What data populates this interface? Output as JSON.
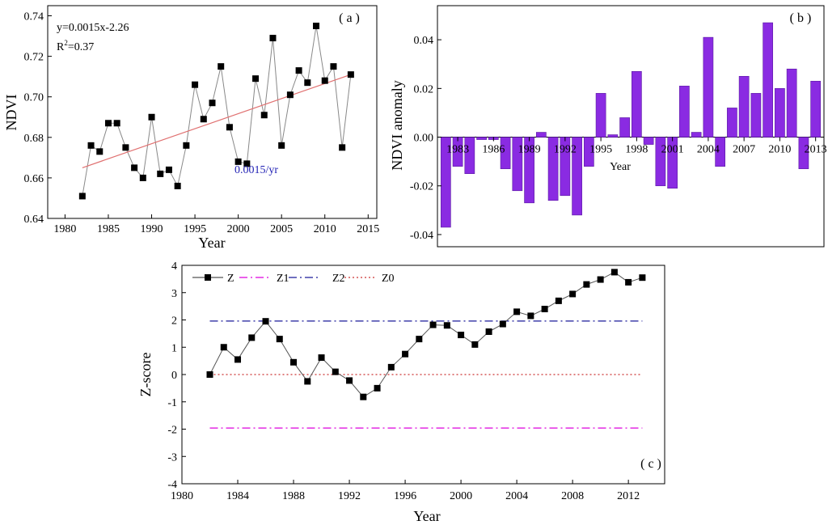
{
  "colors": {
    "points": "#000000",
    "line_a": "#888888",
    "trend": "#e07070",
    "rate_text": "#1f1fb4",
    "bars": "#8a2be2",
    "z_line": "#555555",
    "z1": "#dd00dd",
    "z2": "#1a1a9a",
    "z0": "#cc3333"
  },
  "chart_data": [
    {
      "id": "a",
      "type": "scatter",
      "panel_label": "( a )",
      "xlabel": "Year",
      "ylabel": "NDVI",
      "xlim": [
        1978,
        2016
      ],
      "ylim": [
        0.64,
        0.745
      ],
      "xticks": [
        1980,
        1985,
        1990,
        1995,
        2000,
        2005,
        2010,
        2015
      ],
      "yticks": [
        0.64,
        0.66,
        0.68,
        0.7,
        0.72,
        0.74
      ],
      "ytick_labels": [
        "0.64",
        "0.66",
        "0.68",
        "0.70",
        "0.72",
        "0.74"
      ],
      "equation": "y=0.0015x-2.26",
      "r2_text": "=0.37",
      "r2_prefix": "R",
      "r2_sup": "2",
      "rate_label": "0.0015/yr",
      "x": [
        1982,
        1983,
        1984,
        1985,
        1986,
        1987,
        1988,
        1989,
        1990,
        1991,
        1992,
        1993,
        1994,
        1995,
        1996,
        1997,
        1998,
        1999,
        2000,
        2001,
        2002,
        2003,
        2004,
        2005,
        2006,
        2007,
        2008,
        2009,
        2010,
        2011,
        2012,
        2013
      ],
      "y": [
        0.651,
        0.676,
        0.673,
        0.687,
        0.687,
        0.675,
        0.665,
        0.66,
        0.69,
        0.662,
        0.664,
        0.656,
        0.676,
        0.706,
        0.689,
        0.697,
        0.715,
        0.685,
        0.668,
        0.667,
        0.709,
        0.691,
        0.729,
        0.676,
        0.701,
        0.713,
        0.707,
        0.735,
        0.708,
        0.715,
        0.675,
        0.711
      ],
      "trend": {
        "x": [
          1982,
          2013
        ],
        "y": [
          0.665,
          0.711
        ]
      }
    },
    {
      "id": "b",
      "type": "bar",
      "panel_label": "( b )",
      "xlabel": "Year",
      "ylabel": "NDVI anomaly",
      "xlim": [
        1981.3,
        2013.7
      ],
      "ylim": [
        -0.045,
        0.054
      ],
      "xtick_labels": [
        "1983",
        "1986",
        "1989",
        "1992",
        "1995",
        "1998",
        "2001",
        "2004",
        "2007",
        "2010",
        "2013"
      ],
      "yticks": [
        -0.04,
        -0.02,
        0.0,
        0.02,
        0.04
      ],
      "ytick_labels": [
        "-0.04",
        "-0.02",
        "0.00",
        "0.02",
        "0.04"
      ],
      "categories": [
        1982,
        1983,
        1984,
        1985,
        1986,
        1987,
        1988,
        1989,
        1990,
        1991,
        1992,
        1993,
        1994,
        1995,
        1996,
        1997,
        1998,
        1999,
        2000,
        2001,
        2002,
        2003,
        2004,
        2005,
        2006,
        2007,
        2008,
        2009,
        2010,
        2011,
        2012,
        2013
      ],
      "values": [
        -0.037,
        -0.012,
        -0.015,
        -0.001,
        -0.001,
        -0.013,
        -0.022,
        -0.027,
        0.002,
        -0.026,
        -0.024,
        -0.032,
        -0.012,
        0.018,
        0.001,
        0.008,
        0.027,
        -0.003,
        -0.02,
        -0.021,
        0.021,
        0.002,
        0.041,
        -0.012,
        0.012,
        0.025,
        0.018,
        0.047,
        0.02,
        0.028,
        -0.013,
        0.023
      ]
    },
    {
      "id": "c",
      "type": "line",
      "panel_label": "( c )",
      "xlabel": "Year",
      "ylabel": "Z-score",
      "xlim": [
        1980,
        2014.6
      ],
      "ylim": [
        -4,
        4
      ],
      "xticks": [
        1980,
        1984,
        1988,
        1992,
        1996,
        2000,
        2004,
        2008,
        2012
      ],
      "yticks": [
        -4,
        -3,
        -2,
        -1,
        0,
        1,
        2,
        3,
        4
      ],
      "legend": [
        "Z",
        "Z1",
        "Z2",
        "Z0"
      ],
      "legend_position": "top-left",
      "x": [
        1982,
        1983,
        1984,
        1985,
        1986,
        1987,
        1988,
        1989,
        1990,
        1991,
        1992,
        1993,
        1994,
        1995,
        1996,
        1997,
        1998,
        1999,
        2000,
        2001,
        2002,
        2003,
        2004,
        2005,
        2006,
        2007,
        2008,
        2009,
        2010,
        2011,
        2012,
        2013
      ],
      "z": [
        0.0,
        1.0,
        0.55,
        1.35,
        1.95,
        1.3,
        0.45,
        -0.25,
        0.62,
        0.1,
        -0.22,
        -0.82,
        -0.5,
        0.27,
        0.75,
        1.3,
        1.82,
        1.8,
        1.45,
        1.1,
        1.57,
        1.85,
        2.3,
        2.15,
        2.4,
        2.7,
        2.95,
        3.3,
        3.48,
        3.75,
        3.38,
        3.55
      ],
      "z1": -1.96,
      "z2": 1.96,
      "z0": 0
    }
  ]
}
